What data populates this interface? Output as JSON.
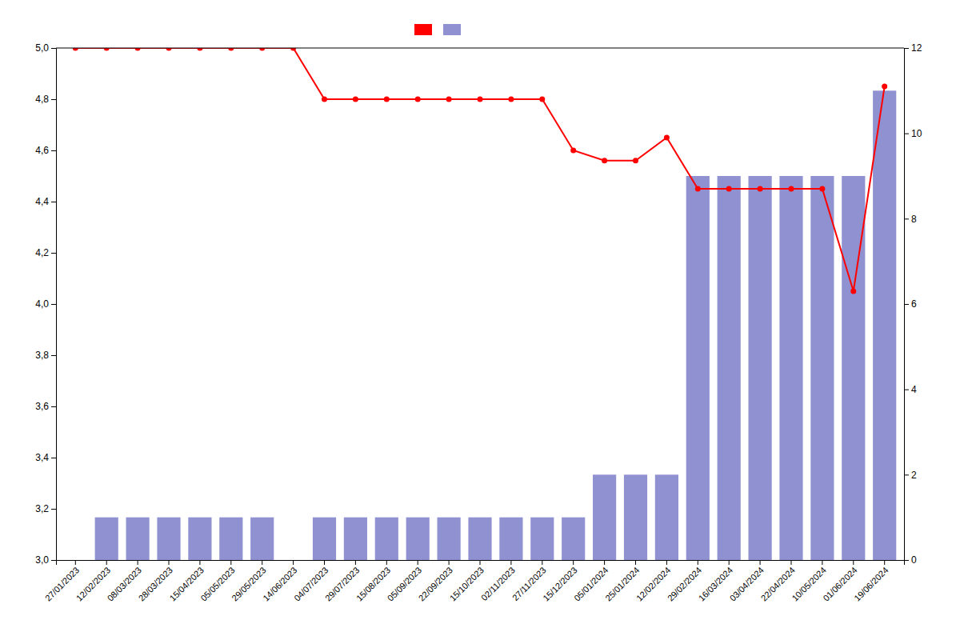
{
  "chart_data": {
    "type": "combo",
    "categories": [
      "27/01/2023",
      "12/02/2023",
      "08/03/2023",
      "28/03/2023",
      "15/04/2023",
      "05/05/2023",
      "29/05/2023",
      "14/06/2023",
      "04/07/2023",
      "29/07/2023",
      "15/08/2023",
      "05/09/2023",
      "22/09/2023",
      "15/10/2023",
      "02/11/2023",
      "27/11/2023",
      "15/12/2023",
      "05/01/2024",
      "25/01/2024",
      "12/02/2024",
      "29/02/2024",
      "16/03/2024",
      "03/04/2024",
      "22/04/2024",
      "10/05/2024",
      "01/06/2024",
      "19/06/2024"
    ],
    "series": [
      {
        "type": "line",
        "color": "#ff0000",
        "marker": "circle",
        "line_style": "solid",
        "values": [
          5.0,
          5.0,
          5.0,
          5.0,
          5.0,
          5.0,
          5.0,
          5.0,
          4.8,
          4.8,
          4.8,
          4.8,
          4.8,
          4.8,
          4.8,
          4.8,
          4.6,
          4.56,
          4.56,
          4.65,
          4.45,
          4.45,
          4.45,
          4.45,
          4.45,
          4.05,
          4.85
        ]
      },
      {
        "type": "bar",
        "color": "#7b7ec8",
        "axis": "y2",
        "values": [
          0,
          1,
          1,
          1,
          1,
          1,
          1,
          0,
          1,
          1,
          1,
          1,
          1,
          1,
          1,
          1,
          1,
          2,
          2,
          2,
          9,
          9,
          9,
          9,
          9,
          9,
          11
        ]
      }
    ],
    "ylim": [
      3.0,
      5.0
    ],
    "yticks": [
      {
        "value": 3.0,
        "label": "3,0"
      },
      {
        "value": 3.2,
        "label": "3,2"
      },
      {
        "value": 3.4,
        "label": "3,4"
      },
      {
        "value": 3.6,
        "label": "3,6"
      },
      {
        "value": 3.8,
        "label": "3,8"
      },
      {
        "value": 4.0,
        "label": "4,0"
      },
      {
        "value": 4.2,
        "label": "4,2"
      },
      {
        "value": 4.4,
        "label": "4,4"
      },
      {
        "value": 4.6,
        "label": "4,6"
      },
      {
        "value": 4.8,
        "label": "4,8"
      },
      {
        "value": 5.0,
        "label": "5,0"
      }
    ],
    "y2lim": [
      0,
      12
    ],
    "y2ticks": [
      0,
      2,
      4,
      6,
      8,
      10,
      12
    ],
    "grid": false,
    "legend": "top"
  }
}
